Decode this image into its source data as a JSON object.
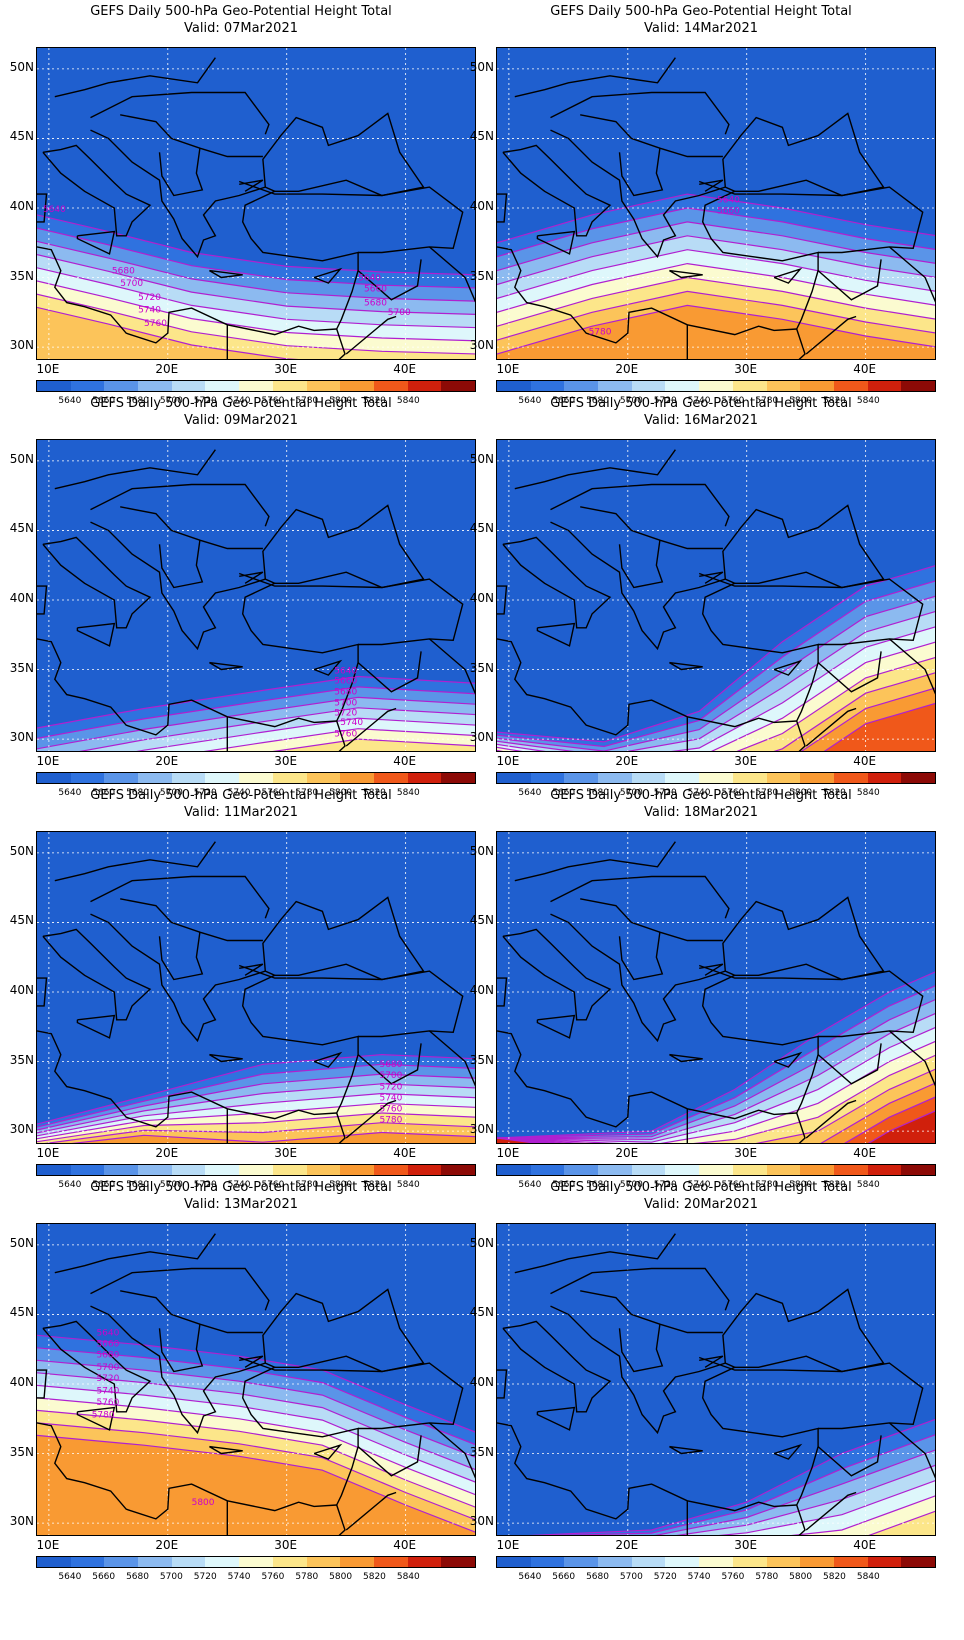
{
  "title": "GEFS Daily 500-hPa Geo-Potential Height Total",
  "lat_labels": [
    "50N",
    "45N",
    "40N",
    "35N",
    "30N"
  ],
  "lon_labels": [
    "10E",
    "20E",
    "30E",
    "40E"
  ],
  "colorbar": {
    "labels": [
      "5640",
      "5660",
      "5680",
      "5700",
      "5720",
      "5740",
      "5760",
      "5780",
      "5800",
      "5820",
      "5840"
    ],
    "colors": [
      "#1f5fcf",
      "#2f72df",
      "#5a94e8",
      "#8cbaf0",
      "#b8dcf6",
      "#def7fb",
      "#fbfbd0",
      "#fce68a",
      "#fcc45a",
      "#f99a33",
      "#f0581a",
      "#d0200c",
      "#8c0a06"
    ]
  },
  "panels": [
    {
      "valid": "Valid: 07Mar2021",
      "contour_labels": [
        "5640",
        "5680",
        "5700",
        "5720",
        "5740",
        "5760",
        "5640",
        "5660",
        "5680",
        "5700"
      ]
    },
    {
      "valid": "Valid: 14Mar2021",
      "contour_labels": [
        "5640",
        "5660",
        "5780"
      ]
    },
    {
      "valid": "Valid: 09Mar2021",
      "contour_labels": [
        "5640",
        "5660",
        "5680",
        "5700",
        "5720",
        "5740",
        "5760"
      ]
    },
    {
      "valid": "Valid: 16Mar2021",
      "contour_labels": []
    },
    {
      "valid": "Valid: 11Mar2021",
      "contour_labels": [
        "5680",
        "5700",
        "5720",
        "5740",
        "5760",
        "5780"
      ]
    },
    {
      "valid": "Valid: 18Mar2021",
      "contour_labels": []
    },
    {
      "valid": "Valid: 13Mar2021",
      "contour_labels": [
        "5640",
        "5660",
        "5680",
        "5700",
        "5720",
        "5740",
        "5760",
        "5780",
        "5800"
      ]
    },
    {
      "valid": "Valid: 20Mar2021",
      "contour_labels": []
    }
  ]
}
